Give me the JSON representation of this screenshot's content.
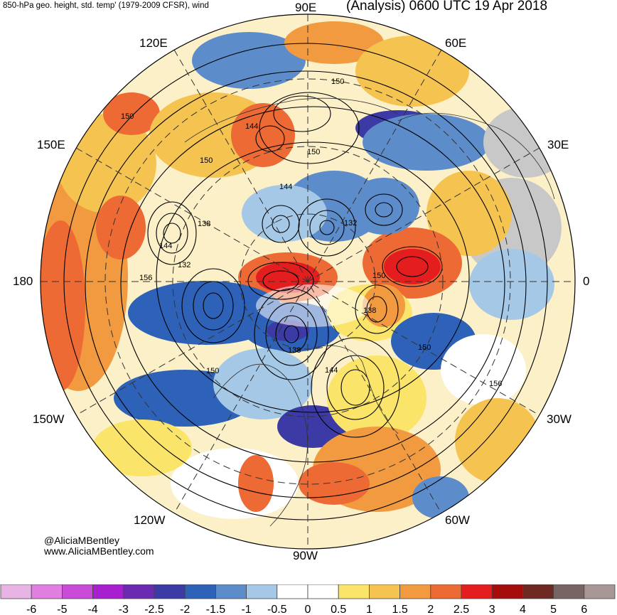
{
  "header": {
    "left_title": "850-hPa geo. height, std. temp' (1979-2009 CFSR), wind",
    "right_title": "(Analysis) 0600 UTC 19 Apr 2018"
  },
  "longitude_labels": {
    "lon_90e": "90E",
    "lon_60e": "60E",
    "lon_120e": "120E",
    "lon_150e": "150E",
    "lon_30e": "30E",
    "lon_180": "180",
    "lon_0": "0",
    "lon_150w": "150W",
    "lon_30w": "30W",
    "lon_120w": "120W",
    "lon_60w": "60W",
    "lon_90w": "90W"
  },
  "contour_labels": [
    "150",
    "150",
    "144",
    "150",
    "150",
    "144",
    "138",
    "132",
    "144",
    "132",
    "156",
    "138",
    "138",
    "150",
    "150",
    "144",
    "156",
    "150"
  ],
  "credits": {
    "handle": "@AliciaMBentley",
    "website": "www.AliciaMBentley.com"
  },
  "colorbar": {
    "colors": [
      "#e8b4e6",
      "#e07fe0",
      "#c94bd8",
      "#a81fcf",
      "#6a2bb0",
      "#3c3aa4",
      "#2e62b8",
      "#5d8ccb",
      "#a5c8e6",
      "#ffffff",
      "#ffffff",
      "#fbe46a",
      "#f5c350",
      "#f29a40",
      "#ee6a35",
      "#e41e1e",
      "#a50d0d",
      "#6e2a22",
      "#786463",
      "#a69696"
    ],
    "tick_labels": [
      "-6",
      "-5",
      "-4",
      "-3",
      "-2.5",
      "-2",
      "-1.5",
      "-1",
      "-0.5",
      "0",
      "0.5",
      "1",
      "1.5",
      "2",
      "2.5",
      "3",
      "4",
      "5",
      "6"
    ]
  }
}
